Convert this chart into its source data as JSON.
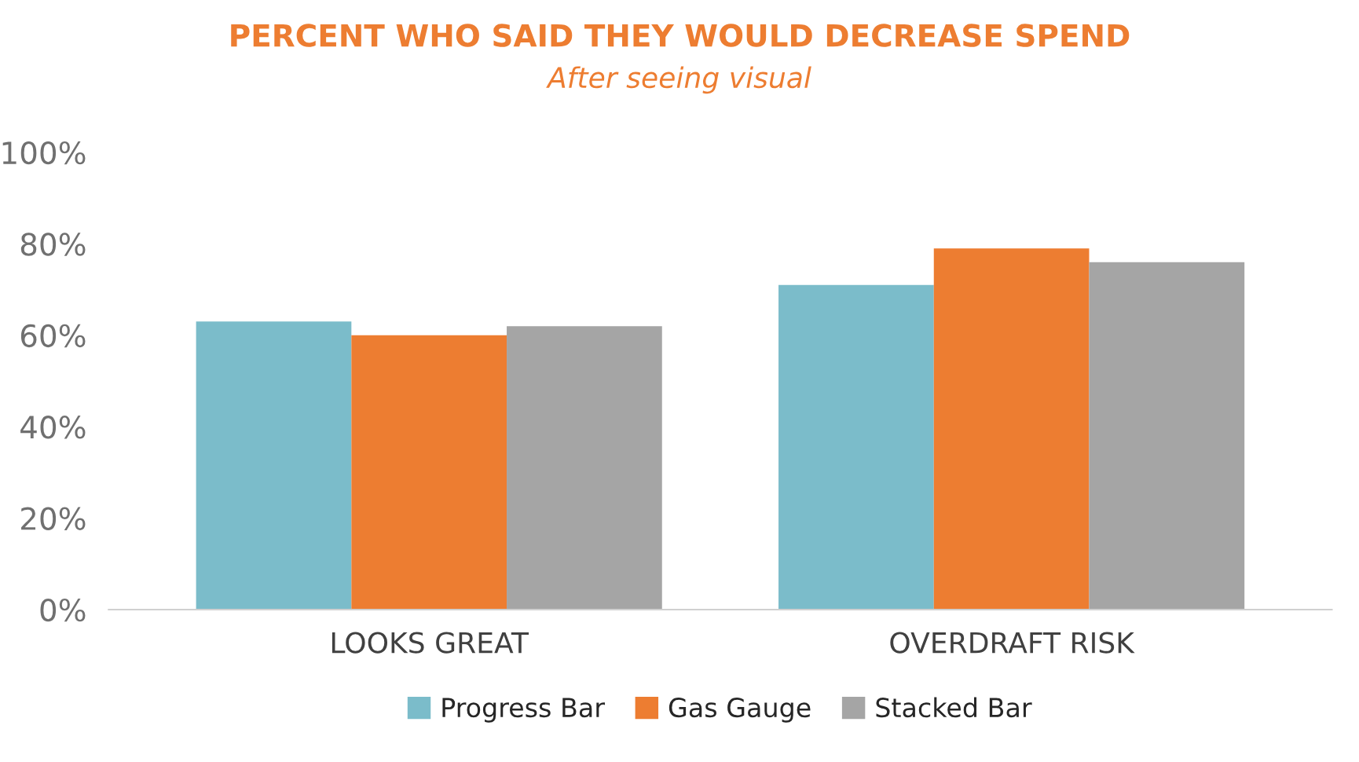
{
  "chart_data": {
    "type": "bar",
    "title": "PERCENT WHO SAID THEY WOULD DECREASE SPEND",
    "subtitle": "After seeing visual",
    "categories": [
      "LOOKS GREAT",
      "OVERDRAFT RISK"
    ],
    "series": [
      {
        "name": "Progress Bar",
        "color": "#7bbcca",
        "values": [
          63,
          71
        ]
      },
      {
        "name": "Gas Gauge",
        "color": "#ed7d31",
        "values": [
          60,
          79
        ]
      },
      {
        "name": "Stacked Bar",
        "color": "#a5a5a5",
        "values": [
          62,
          76
        ]
      }
    ],
    "ylim": [
      0,
      100
    ],
    "yticks": [
      {
        "value": 0,
        "label": "0%"
      },
      {
        "value": 20,
        "label": "20%"
      },
      {
        "value": 40,
        "label": "40%"
      },
      {
        "value": 60,
        "label": "60%"
      },
      {
        "value": 80,
        "label": "80%"
      },
      {
        "value": 100,
        "label": "100%"
      }
    ],
    "grid": false,
    "legend": "bottom"
  }
}
